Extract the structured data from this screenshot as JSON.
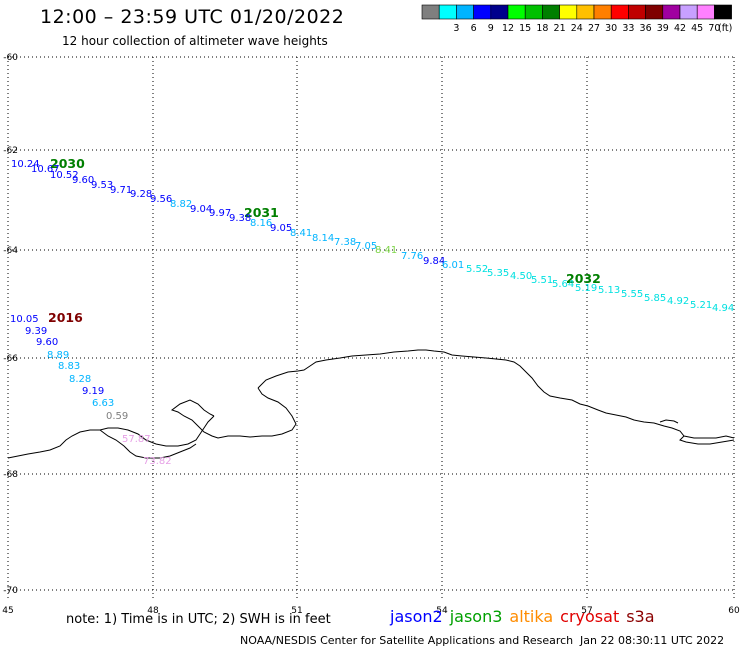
{
  "header": {
    "title": "12:00 – 23:59 UTC 01/20/2022",
    "subtitle": "12 hour collection of altimeter wave heights"
  },
  "colorbar": {
    "unit": "(ft)",
    "bins": [
      {
        "label": "",
        "color": "#7f7f7f"
      },
      {
        "label": "3",
        "color": "#00ffff"
      },
      {
        "label": "6",
        "color": "#00b4ff"
      },
      {
        "label": "9",
        "color": "#0000ff"
      },
      {
        "label": "12",
        "color": "#00008c"
      },
      {
        "label": "15",
        "color": "#00ff00"
      },
      {
        "label": "18",
        "color": "#00c000"
      },
      {
        "label": "21",
        "color": "#007f00"
      },
      {
        "label": "24",
        "color": "#ffff00"
      },
      {
        "label": "27",
        "color": "#ffc000"
      },
      {
        "label": "30",
        "color": "#ff7f00"
      },
      {
        "label": "33",
        "color": "#ff0000"
      },
      {
        "label": "36",
        "color": "#c00000"
      },
      {
        "label": "39",
        "color": "#7f0000"
      },
      {
        "label": "42",
        "color": "#a000a0"
      },
      {
        "label": "45",
        "color": "#c8a0ff"
      },
      {
        "label": "70",
        "color": "#ff80ff"
      },
      {
        "label": "",
        "color": "#000000"
      }
    ]
  },
  "axes": {
    "lat_ticks": [
      "-60",
      "-62",
      "-64",
      "-66",
      "-68",
      "-70"
    ],
    "lon_ticks": [
      "45",
      "48",
      "51",
      "54",
      "57",
      "60"
    ]
  },
  "tracks": [
    {
      "time_label": "2030",
      "label_color": "#007f00"
    },
    {
      "time_label": "2031",
      "label_color": "#007f00"
    },
    {
      "time_label": "2032",
      "label_color": "#007f00"
    },
    {
      "time_label": "2016",
      "label_color": "#7f0000"
    }
  ],
  "observations": [
    {
      "t": "10.24",
      "c": "#0000ff"
    },
    {
      "t": "10.67",
      "c": "#0000ff"
    },
    {
      "t": "10.52",
      "c": "#0000ff"
    },
    {
      "t": "9.60",
      "c": "#0000ff"
    },
    {
      "t": "9.53",
      "c": "#0000ff"
    },
    {
      "t": "9.71",
      "c": "#0000ff"
    },
    {
      "t": "9.28",
      "c": "#0000ff"
    },
    {
      "t": "9.56",
      "c": "#0000ff"
    },
    {
      "t": "8.82",
      "c": "#00b4ff"
    },
    {
      "t": "9.04",
      "c": "#0000ff"
    },
    {
      "t": "9.97",
      "c": "#0000ff"
    },
    {
      "t": "9.38",
      "c": "#0000ff"
    },
    {
      "t": "8.16",
      "c": "#00b4ff"
    },
    {
      "t": "9.05",
      "c": "#0000ff"
    },
    {
      "t": "8.41",
      "c": "#00b4ff"
    },
    {
      "t": "8.14",
      "c": "#00b4ff"
    },
    {
      "t": "7.38",
      "c": "#00b4ff"
    },
    {
      "t": "7.05",
      "c": "#00b4ff"
    },
    {
      "t": "8.41",
      "c": "#7fd64a"
    },
    {
      "t": "7.76",
      "c": "#00b4ff"
    },
    {
      "t": "9.84",
      "c": "#0000ff"
    },
    {
      "t": "6.01",
      "c": "#00b4ff"
    },
    {
      "t": "5.52",
      "c": "#00e0e0"
    },
    {
      "t": "5.35",
      "c": "#00e0e0"
    },
    {
      "t": "4.50",
      "c": "#00e0e0"
    },
    {
      "t": "5.51",
      "c": "#00e0e0"
    },
    {
      "t": "5.64",
      "c": "#00e0e0"
    },
    {
      "t": "5.19",
      "c": "#00e0e0"
    },
    {
      "t": "5.13",
      "c": "#00e0e0"
    },
    {
      "t": "5.55",
      "c": "#00e0e0"
    },
    {
      "t": "5.85",
      "c": "#00e0e0"
    },
    {
      "t": "4.92",
      "c": "#00e0e0"
    },
    {
      "t": "5.21",
      "c": "#00e0e0"
    },
    {
      "t": "4.94",
      "c": "#00e0e0"
    },
    {
      "t": "10.05",
      "c": "#0000ff"
    },
    {
      "t": "9.39",
      "c": "#0000ff"
    },
    {
      "t": "9.60",
      "c": "#0000ff"
    },
    {
      "t": "8.89",
      "c": "#00b4ff"
    },
    {
      "t": "8.83",
      "c": "#00b4ff"
    },
    {
      "t": "8.28",
      "c": "#00b4ff"
    },
    {
      "t": "9.19",
      "c": "#0000ff"
    },
    {
      "t": "6.63",
      "c": "#00b4ff"
    },
    {
      "t": "0.59",
      "c": "#7f7f7f"
    },
    {
      "t": "57.87",
      "c": "#e6a0e6"
    },
    {
      "t": "73.82",
      "c": "#e6a0e6"
    }
  ],
  "note": "note: 1) Time is in UTC; 2) SWH is in feet",
  "satellites": [
    {
      "name": "jason2",
      "color": "#0000ff"
    },
    {
      "name": "jason3",
      "color": "#00a000"
    },
    {
      "name": "altika",
      "color": "#ff8c00"
    },
    {
      "name": "cryosat",
      "color": "#e00000"
    },
    {
      "name": "s3a",
      "color": "#8b0000"
    }
  ],
  "footer": {
    "credit": "NOAA/NESDIS Center for Satellite Applications and Research",
    "timestamp": "Jan 22 08:30:11 UTC 2022"
  }
}
